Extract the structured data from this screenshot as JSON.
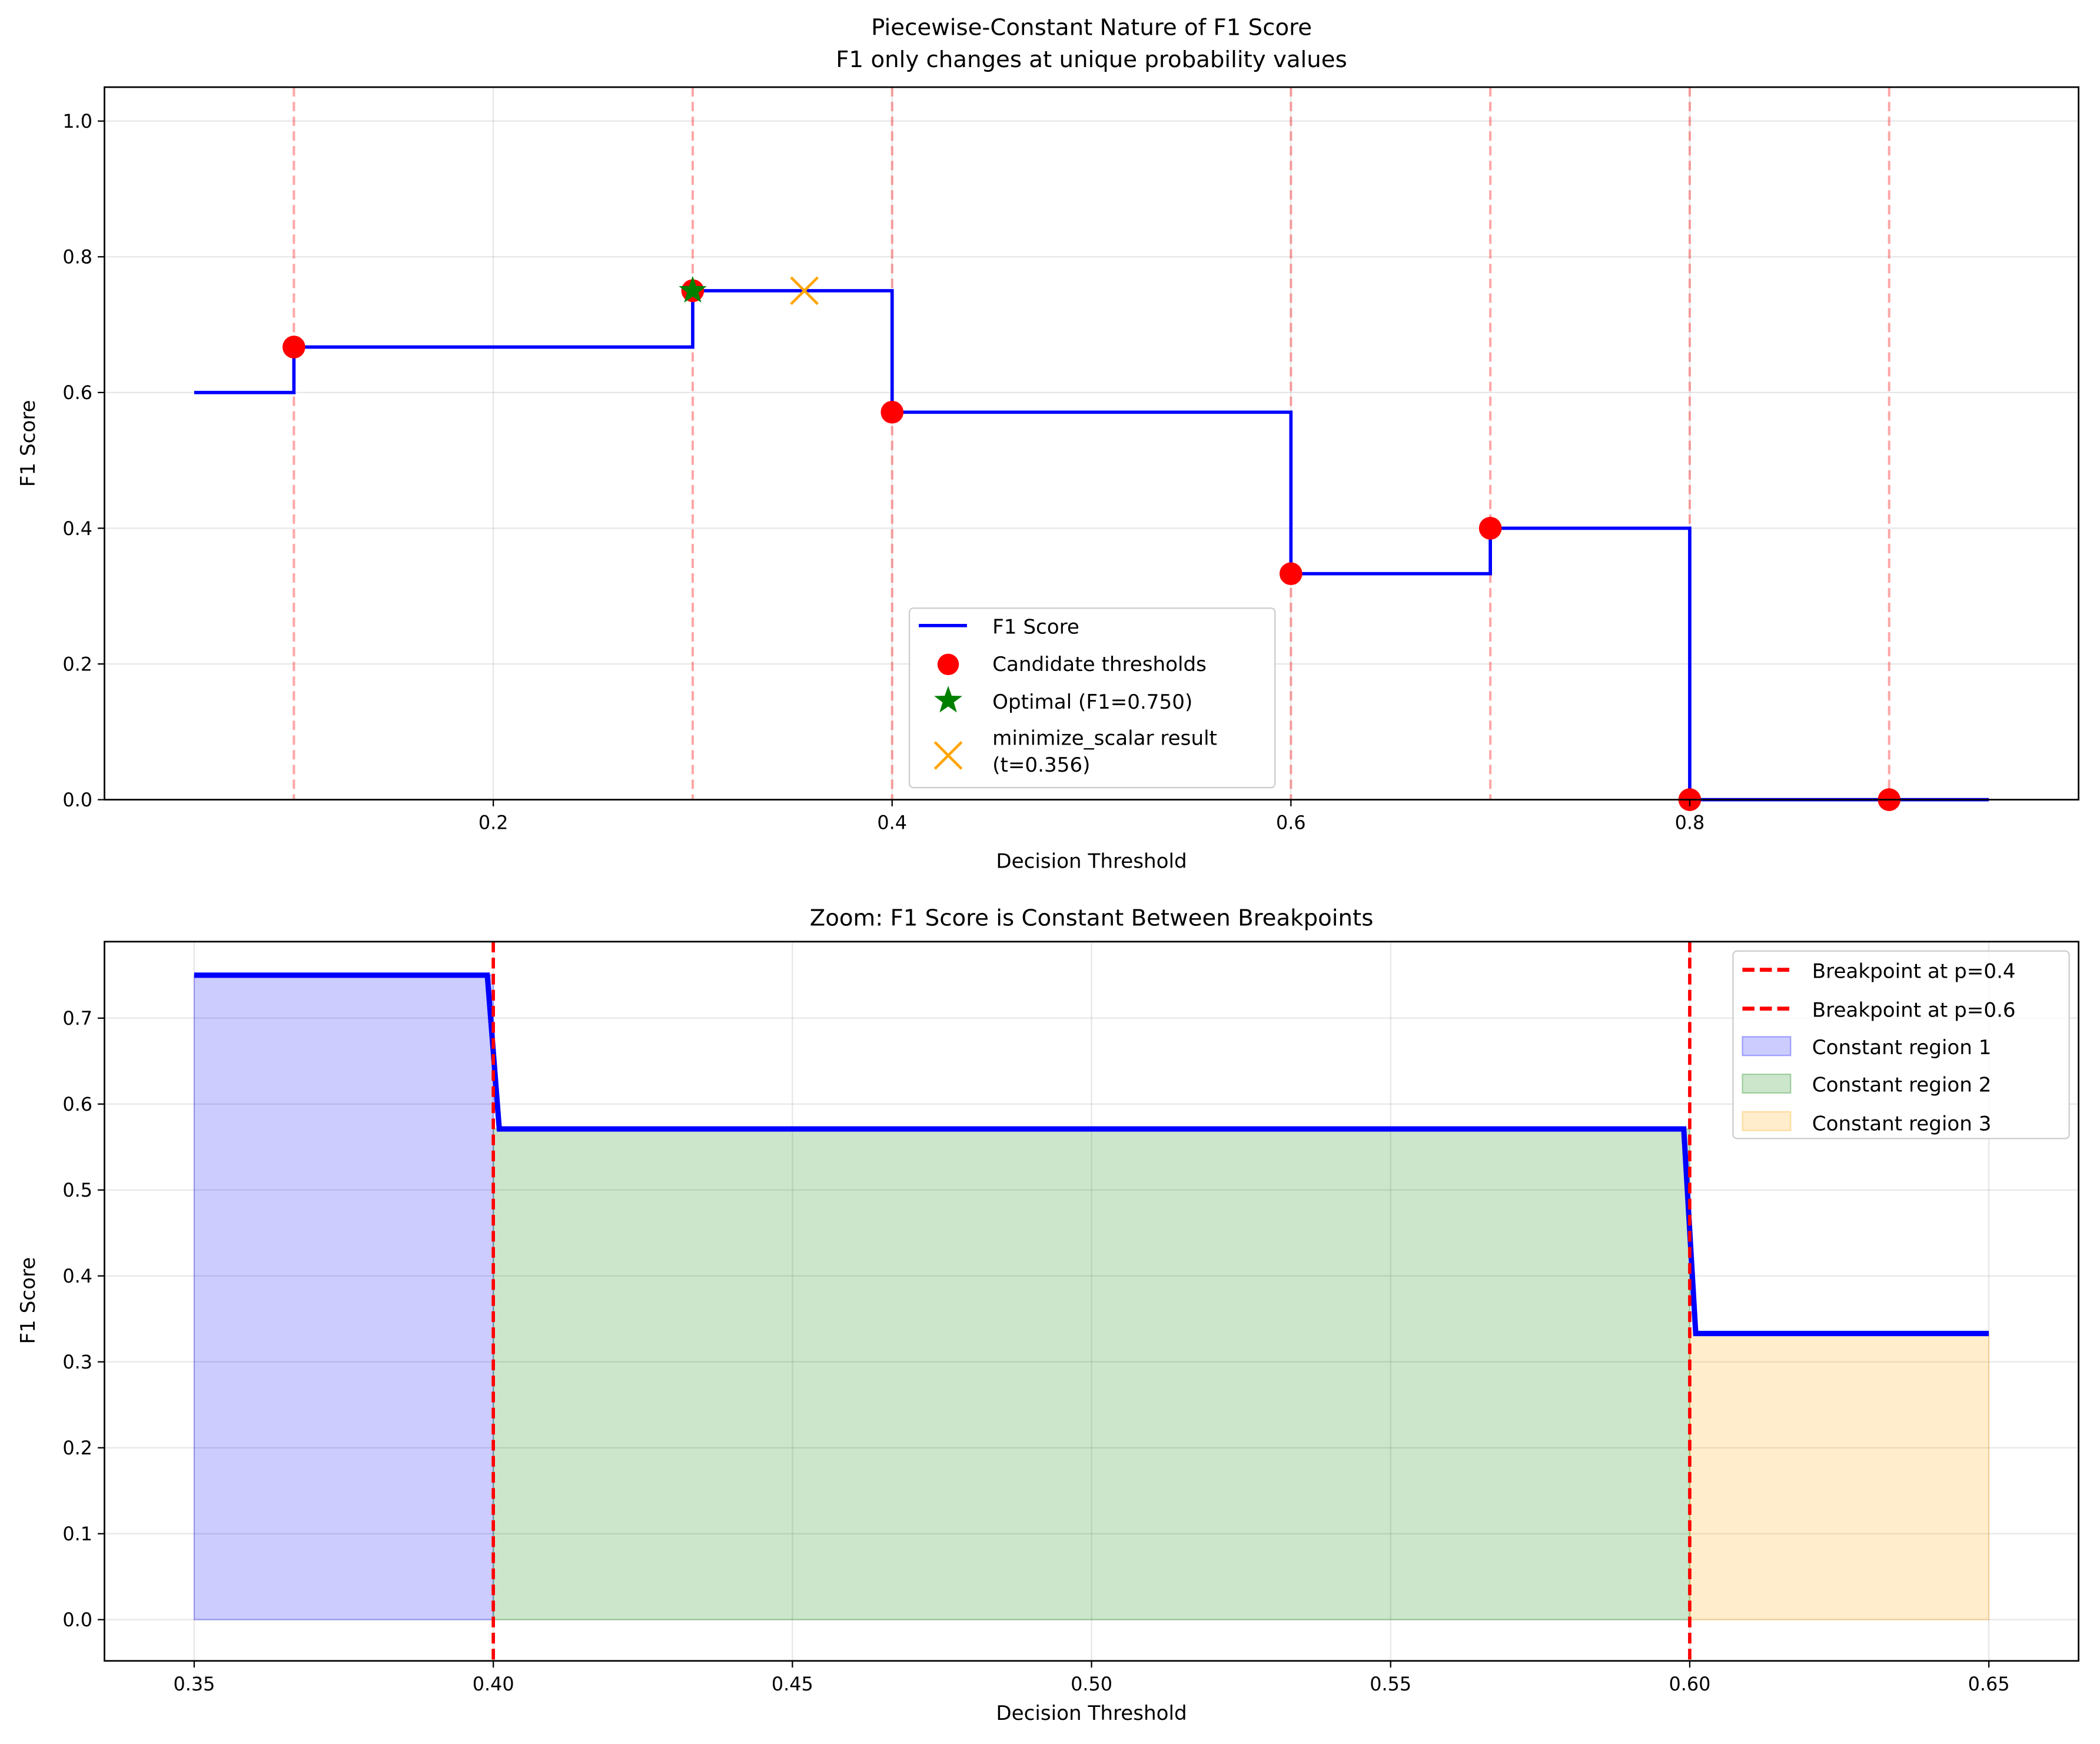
{
  "chart_data": [
    {
      "type": "line",
      "title": "Piecewise-Constant Nature of F1 Score",
      "subtitle": "F1 only changes at unique probability values",
      "xlabel": "Decision Threshold",
      "ylabel": "F1 Score",
      "xlim": [
        0.005,
        0.995
      ],
      "ylim": [
        0,
        1.05
      ],
      "xticks": [
        0.2,
        0.4,
        0.6,
        0.8
      ],
      "xtick_labels": [
        "0.2",
        "0.4",
        "0.6",
        "0.8"
      ],
      "yticks": [
        0,
        0.2,
        0.4,
        0.6,
        0.8,
        1.0
      ],
      "ytick_labels": [
        "0.0",
        "0.2",
        "0.4",
        "0.6",
        "0.8",
        "1.0"
      ],
      "grid": true,
      "legend_position": "lower-center",
      "f1_curve": {
        "name": "F1 Score",
        "x": [
          0.05,
          0.1,
          0.1,
          0.3,
          0.3,
          0.4,
          0.4,
          0.6,
          0.6,
          0.7,
          0.7,
          0.8,
          0.8,
          0.95
        ],
        "y": [
          0.6,
          0.6,
          0.667,
          0.667,
          0.75,
          0.75,
          0.571,
          0.571,
          0.333,
          0.333,
          0.4,
          0.4,
          0.0,
          0.0
        ],
        "color": "#0000ff"
      },
      "candidates": {
        "name": "Candidate thresholds",
        "x": [
          0.1,
          0.3,
          0.4,
          0.6,
          0.7,
          0.8,
          0.9
        ],
        "y": [
          0.667,
          0.75,
          0.571,
          0.333,
          0.4,
          0.0,
          0.0
        ],
        "color": "#ff0000"
      },
      "optimal": {
        "name": "Optimal (F1=0.750)",
        "x": 0.3,
        "y": 0.75,
        "color": "#008000"
      },
      "minimize_scalar": {
        "name_line1": "minimize_scalar result",
        "name_line2": "(t=0.356)",
        "x": 0.356,
        "y": 0.75,
        "color": "#ffa500"
      }
    },
    {
      "type": "area",
      "title": "Zoom: F1 Score is Constant Between Breakpoints",
      "xlabel": "Decision Threshold",
      "ylabel": "F1 Score",
      "xlim": [
        0.335,
        0.665
      ],
      "ylim": [
        -0.048,
        0.789
      ],
      "xticks": [
        0.35,
        0.4,
        0.45,
        0.5,
        0.55,
        0.6,
        0.65
      ],
      "xtick_labels": [
        "0.35",
        "0.40",
        "0.45",
        "0.50",
        "0.55",
        "0.60",
        "0.65"
      ],
      "yticks": [
        0,
        0.1,
        0.2,
        0.3,
        0.4,
        0.5,
        0.6,
        0.7
      ],
      "ytick_labels": [
        "0.0",
        "0.1",
        "0.2",
        "0.3",
        "0.4",
        "0.5",
        "0.6",
        "0.7"
      ],
      "grid": true,
      "legend_position": "upper-right",
      "f1_curve": {
        "x": [
          0.35,
          0.399,
          0.401,
          0.599,
          0.601,
          0.65
        ],
        "y": [
          0.75,
          0.75,
          0.571,
          0.571,
          0.333,
          0.333
        ],
        "color": "#0000ff"
      },
      "breakpoints": [
        {
          "name": "Breakpoint at p=0.4",
          "x": 0.4,
          "color": "#ff0000"
        },
        {
          "name": "Breakpoint at p=0.6",
          "x": 0.6,
          "color": "#ff0000"
        }
      ],
      "regions": [
        {
          "name": "Constant region 1",
          "x0": 0.35,
          "x1": 0.4,
          "y": 0.75,
          "color": "#0000ff"
        },
        {
          "name": "Constant region 2",
          "x0": 0.4,
          "x1": 0.6,
          "y": 0.571,
          "color": "#008000"
        },
        {
          "name": "Constant region 3",
          "x0": 0.6,
          "x1": 0.65,
          "y": 0.333,
          "color": "#ffa500"
        }
      ]
    }
  ]
}
